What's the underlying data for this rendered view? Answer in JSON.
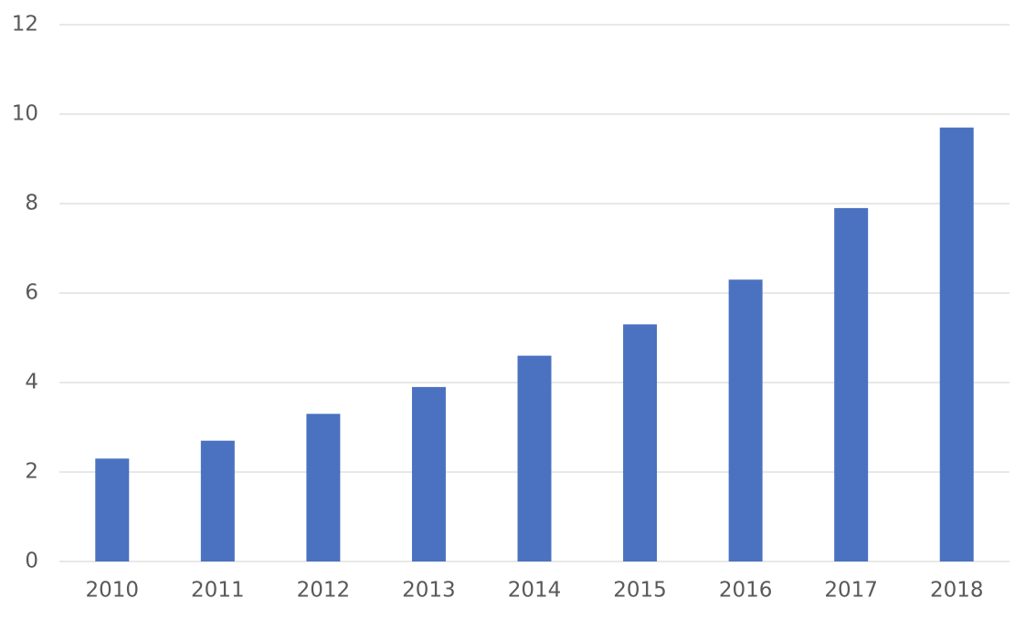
{
  "chart_data": {
    "type": "bar",
    "categories": [
      "2010",
      "2011",
      "2012",
      "2013",
      "2014",
      "2015",
      "2016",
      "2017",
      "2018"
    ],
    "values": [
      2.3,
      2.7,
      3.3,
      3.9,
      4.6,
      5.3,
      6.3,
      7.9,
      9.7
    ],
    "color": "#4a72c0",
    "ylim": [
      0,
      12
    ],
    "yticks": [
      0,
      2,
      4,
      6,
      8,
      10,
      12
    ],
    "grid": true
  }
}
